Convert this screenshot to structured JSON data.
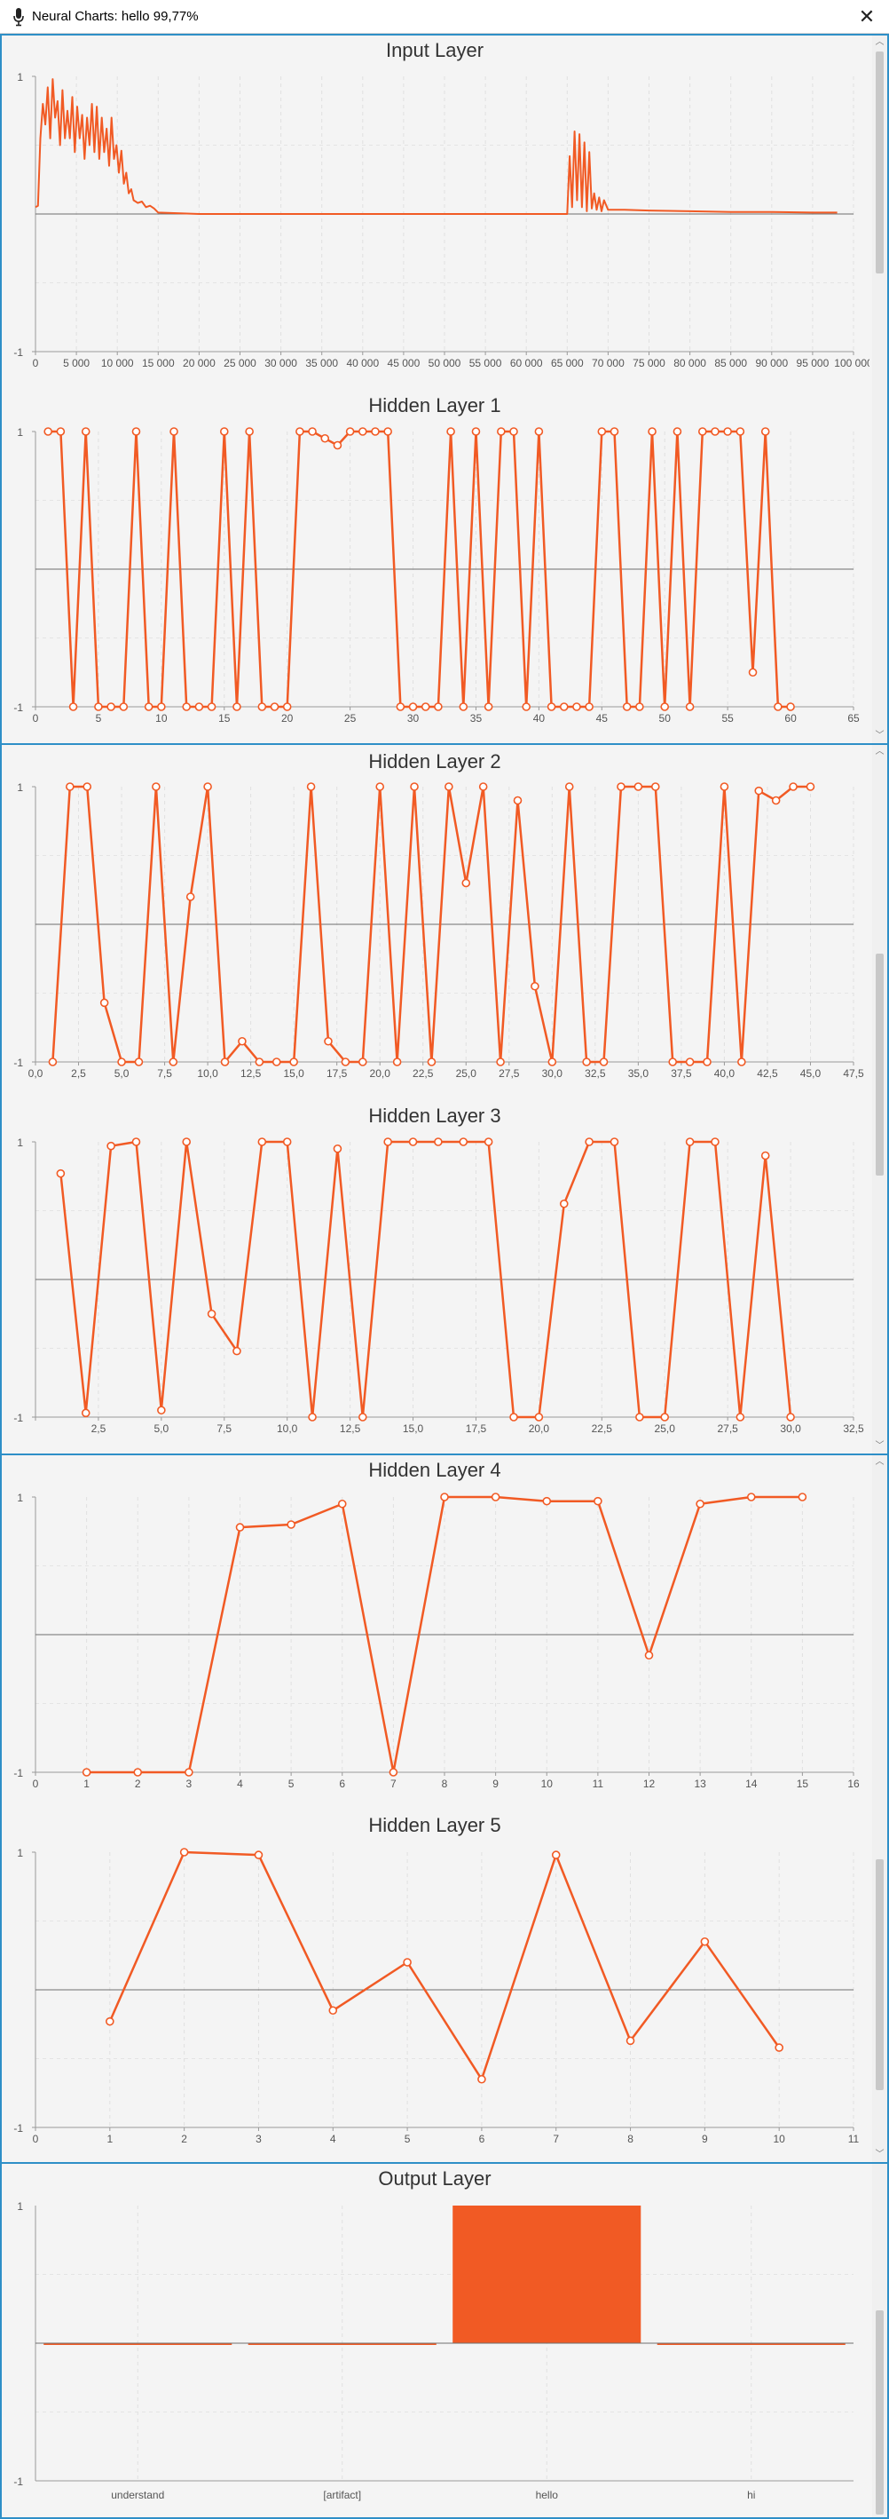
{
  "window": {
    "title": "Neural Charts: hello 99,77%",
    "close_label": "✕",
    "mic_icon": "microphone-icon"
  },
  "accent_color": "#f15a24",
  "border_color": "#2e8fc7",
  "chart_data": [
    {
      "type": "line",
      "title": "Input Layer",
      "ylim": [
        -1,
        1
      ],
      "xlim": [
        0,
        100000
      ],
      "xticks": [
        0,
        5000,
        10000,
        15000,
        20000,
        25000,
        30000,
        35000,
        40000,
        45000,
        50000,
        55000,
        60000,
        65000,
        70000,
        75000,
        80000,
        85000,
        90000,
        95000,
        100000
      ],
      "xtick_labels": [
        "0",
        "5 000",
        "10 000",
        "15 000",
        "20 000",
        "25 000",
        "30 000",
        "35 000",
        "40 000",
        "45 000",
        "50 000",
        "55 000",
        "60 000",
        "65 000",
        "70 000",
        "75 000",
        "80 000",
        "85 000",
        "90 000",
        "95 000",
        "100 000"
      ],
      "ytick_labels": [
        "1",
        "-1"
      ],
      "markers": false,
      "grid": true,
      "series": [
        {
          "x": [
            0,
            300,
            600,
            900,
            1200,
            1500,
            1800,
            2100,
            2400,
            2700,
            3000,
            3300,
            3600,
            3900,
            4200,
            4500,
            4800,
            5100,
            5400,
            5700,
            6000,
            6300,
            6600,
            6900,
            7200,
            7500,
            7800,
            8100,
            8400,
            8700,
            9000,
            9300,
            9600,
            9900,
            10200,
            10500,
            10800,
            11100,
            11400,
            11700,
            12000,
            12500,
            13000,
            13500,
            14000,
            14500,
            15000,
            20000,
            30000,
            40000,
            50000,
            60000,
            65000,
            65300,
            65600,
            65900,
            66200,
            66500,
            66800,
            67100,
            67400,
            67700,
            68000,
            68300,
            68600,
            68900,
            69200,
            69500,
            70000,
            72000,
            75000,
            80000,
            85000,
            90000,
            95000,
            98000
          ],
          "values": [
            0.05,
            0.06,
            0.55,
            0.8,
            0.65,
            0.92,
            0.55,
            0.98,
            0.7,
            0.82,
            0.5,
            0.9,
            0.55,
            0.75,
            0.55,
            0.85,
            0.45,
            0.78,
            0.55,
            0.72,
            0.4,
            0.7,
            0.5,
            0.8,
            0.45,
            0.78,
            0.4,
            0.7,
            0.45,
            0.62,
            0.35,
            0.7,
            0.4,
            0.5,
            0.3,
            0.46,
            0.22,
            0.3,
            0.15,
            0.18,
            0.1,
            0.08,
            0.09,
            0.05,
            0.06,
            0.04,
            0.01,
            0.0,
            0.0,
            0.0,
            0.0,
            0.0,
            0.0,
            0.42,
            0.05,
            0.6,
            0.1,
            0.58,
            0.05,
            0.52,
            0.02,
            0.45,
            0.04,
            0.15,
            0.03,
            0.12,
            0.02,
            0.1,
            0.03,
            0.03,
            0.025,
            0.02,
            0.015,
            0.015,
            0.01,
            0.01
          ]
        }
      ]
    },
    {
      "type": "line",
      "title": "Hidden Layer 1",
      "ylim": [
        -1,
        1
      ],
      "xlim": [
        0,
        65
      ],
      "xticks": [
        0,
        5,
        10,
        15,
        20,
        25,
        30,
        35,
        40,
        45,
        50,
        55,
        60,
        65
      ],
      "xtick_labels": [
        "0",
        "5",
        "10",
        "15",
        "20",
        "25",
        "30",
        "35",
        "40",
        "45",
        "50",
        "55",
        "60",
        "65"
      ],
      "ytick_labels": [
        "1",
        "-1"
      ],
      "markers": true,
      "grid": true,
      "series": [
        {
          "x": [
            1,
            2,
            3,
            4,
            5,
            6,
            7,
            8,
            9,
            10,
            11,
            12,
            13,
            14,
            15,
            16,
            17,
            18,
            19,
            20,
            21,
            22,
            23,
            24,
            25,
            26,
            27,
            28,
            29,
            30,
            31,
            32,
            33,
            34,
            35,
            36,
            37,
            38,
            39,
            40,
            41,
            42,
            43,
            44,
            45,
            46,
            47,
            48,
            49,
            50,
            51,
            52,
            53,
            54,
            55,
            56,
            57,
            58,
            59,
            60
          ],
          "values": [
            1,
            1,
            -1,
            1,
            -1,
            -1,
            -1,
            1,
            -1,
            -1,
            1,
            -1,
            -1,
            -1,
            1,
            -1,
            1,
            -1,
            -1,
            -1,
            1,
            1,
            0.95,
            0.9,
            1,
            1,
            1,
            1,
            -1,
            -1,
            -1,
            -1,
            1,
            -1,
            1,
            -1,
            1,
            1,
            -1,
            1,
            -1,
            -1,
            -1,
            -1,
            1,
            1,
            -1,
            -1,
            1,
            -1,
            1,
            -1,
            1,
            1,
            1,
            1,
            -0.75,
            1,
            -1,
            -1
          ]
        }
      ]
    },
    {
      "type": "line",
      "title": "Hidden Layer 2",
      "ylim": [
        -1,
        1
      ],
      "xlim": [
        0,
        47.5
      ],
      "xticks": [
        0,
        2.5,
        5,
        7.5,
        10,
        12.5,
        15,
        17.5,
        20,
        22.5,
        25,
        27.5,
        30,
        32.5,
        35,
        37.5,
        40,
        42.5,
        45,
        47.5
      ],
      "xtick_labels": [
        "0,0",
        "2,5",
        "5,0",
        "7,5",
        "10,0",
        "12,5",
        "15,0",
        "17,5",
        "20,0",
        "22,5",
        "25,0",
        "27,5",
        "30,0",
        "32,5",
        "35,0",
        "37,5",
        "40,0",
        "42,5",
        "45,0",
        "47,5"
      ],
      "ytick_labels": [
        "1",
        "-1"
      ],
      "markers": true,
      "grid": true,
      "series": [
        {
          "x": [
            1,
            2,
            3,
            4,
            5,
            6,
            7,
            8,
            9,
            10,
            11,
            12,
            13,
            14,
            15,
            16,
            17,
            18,
            19,
            20,
            21,
            22,
            23,
            24,
            25,
            26,
            27,
            28,
            29,
            30,
            31,
            32,
            33,
            34,
            35,
            36,
            37,
            38,
            39,
            40,
            41,
            42,
            43,
            44,
            45
          ],
          "values": [
            -1,
            1,
            1,
            -0.57,
            -1,
            -1,
            1,
            -1,
            0.2,
            1,
            -1,
            -0.85,
            -1,
            -1,
            -1,
            1,
            -0.85,
            -1,
            -1,
            1,
            -1,
            1,
            -1,
            1,
            0.3,
            1,
            -1,
            0.9,
            -0.45,
            -1,
            1,
            -1,
            -1,
            1,
            1,
            1,
            -1,
            -1,
            -1,
            1,
            -1,
            0.97,
            0.9,
            1,
            1
          ]
        }
      ]
    },
    {
      "type": "line",
      "title": "Hidden Layer 3",
      "ylim": [
        -1,
        1
      ],
      "xlim": [
        0,
        32.5
      ],
      "xticks": [
        0,
        2.5,
        5,
        7.5,
        10,
        12.5,
        15,
        17.5,
        20,
        22.5,
        25,
        27.5,
        30,
        32.5
      ],
      "xtick_labels": [
        "",
        "2,5",
        "5,0",
        "7,5",
        "10,0",
        "12,5",
        "15,0",
        "17,5",
        "20,0",
        "22,5",
        "25,0",
        "27,5",
        "30,0",
        "32,5"
      ],
      "ytick_labels": [
        "1",
        "-1"
      ],
      "markers": true,
      "grid": true,
      "series": [
        {
          "x": [
            1,
            2,
            3,
            4,
            5,
            6,
            7,
            8,
            9,
            10,
            11,
            12,
            13,
            14,
            15,
            16,
            17,
            18,
            19,
            20,
            21,
            22,
            23,
            24,
            25,
            26,
            27,
            28,
            29,
            30
          ],
          "values": [
            0.77,
            -0.97,
            0.97,
            1,
            -0.95,
            1,
            -0.25,
            -0.52,
            1,
            1,
            -1,
            0.95,
            -1,
            1,
            1,
            1,
            1,
            1,
            -1,
            -1,
            0.55,
            1,
            1,
            -1,
            -1,
            1,
            1,
            -1,
            0.9,
            -1
          ]
        }
      ]
    },
    {
      "type": "line",
      "title": "Hidden Layer 4",
      "ylim": [
        -1,
        1
      ],
      "xlim": [
        0,
        16
      ],
      "xticks": [
        0,
        1,
        2,
        3,
        4,
        5,
        6,
        7,
        8,
        9,
        10,
        11,
        12,
        13,
        14,
        15,
        16
      ],
      "xtick_labels": [
        "0",
        "1",
        "2",
        "3",
        "4",
        "5",
        "6",
        "7",
        "8",
        "9",
        "10",
        "11",
        "12",
        "13",
        "14",
        "15",
        "16"
      ],
      "ytick_labels": [
        "1",
        "-1"
      ],
      "markers": true,
      "grid": true,
      "series": [
        {
          "x": [
            1,
            2,
            3,
            4,
            5,
            6,
            7,
            8,
            9,
            10,
            11,
            12,
            13,
            14,
            15
          ],
          "values": [
            -1,
            -1,
            -1,
            0.78,
            0.8,
            0.95,
            -1,
            1,
            1,
            0.97,
            0.97,
            -0.15,
            0.95,
            1,
            1
          ]
        }
      ]
    },
    {
      "type": "line",
      "title": "Hidden Layer 5",
      "ylim": [
        -1,
        1
      ],
      "xlim": [
        0,
        11
      ],
      "xticks": [
        0,
        1,
        2,
        3,
        4,
        5,
        6,
        7,
        8,
        9,
        10,
        11
      ],
      "xtick_labels": [
        "0",
        "1",
        "2",
        "3",
        "4",
        "5",
        "6",
        "7",
        "8",
        "9",
        "10",
        "11"
      ],
      "ytick_labels": [
        "1",
        "-1"
      ],
      "markers": true,
      "grid": true,
      "series": [
        {
          "x": [
            1,
            2,
            3,
            4,
            5,
            6,
            7,
            8,
            9,
            10
          ],
          "values": [
            -0.23,
            1,
            0.98,
            -0.15,
            0.2,
            -0.65,
            0.98,
            -0.37,
            0.35,
            -0.42
          ]
        }
      ]
    },
    {
      "type": "bar",
      "title": "Output Layer",
      "ylim": [
        -1,
        1
      ],
      "categories": [
        "understand",
        "[artifact]",
        "hello",
        "hi"
      ],
      "values": [
        0.0,
        0.0,
        1.0,
        0.0
      ],
      "ytick_labels": [
        "1",
        "-1"
      ],
      "grid": true
    }
  ]
}
